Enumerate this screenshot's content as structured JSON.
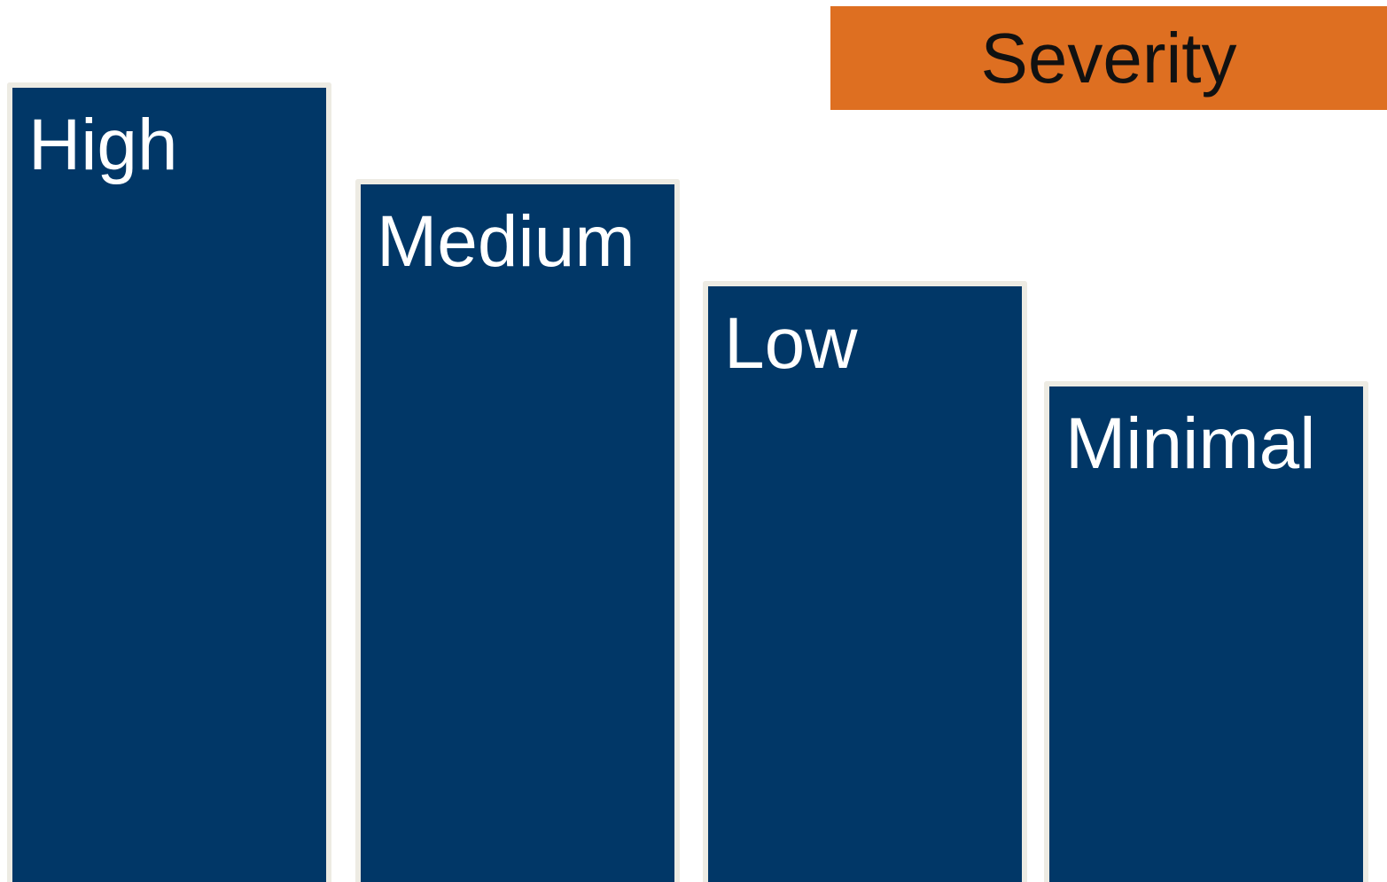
{
  "title": "Severity",
  "colors": {
    "title_background": "#DE6F21",
    "bar_fill": "#013767",
    "bar_border": "#EDEBE3",
    "label_text": "#ffffff"
  },
  "levels": [
    {
      "label": "High"
    },
    {
      "label": "Medium"
    },
    {
      "label": "Low"
    },
    {
      "label": "Minimal"
    }
  ]
}
